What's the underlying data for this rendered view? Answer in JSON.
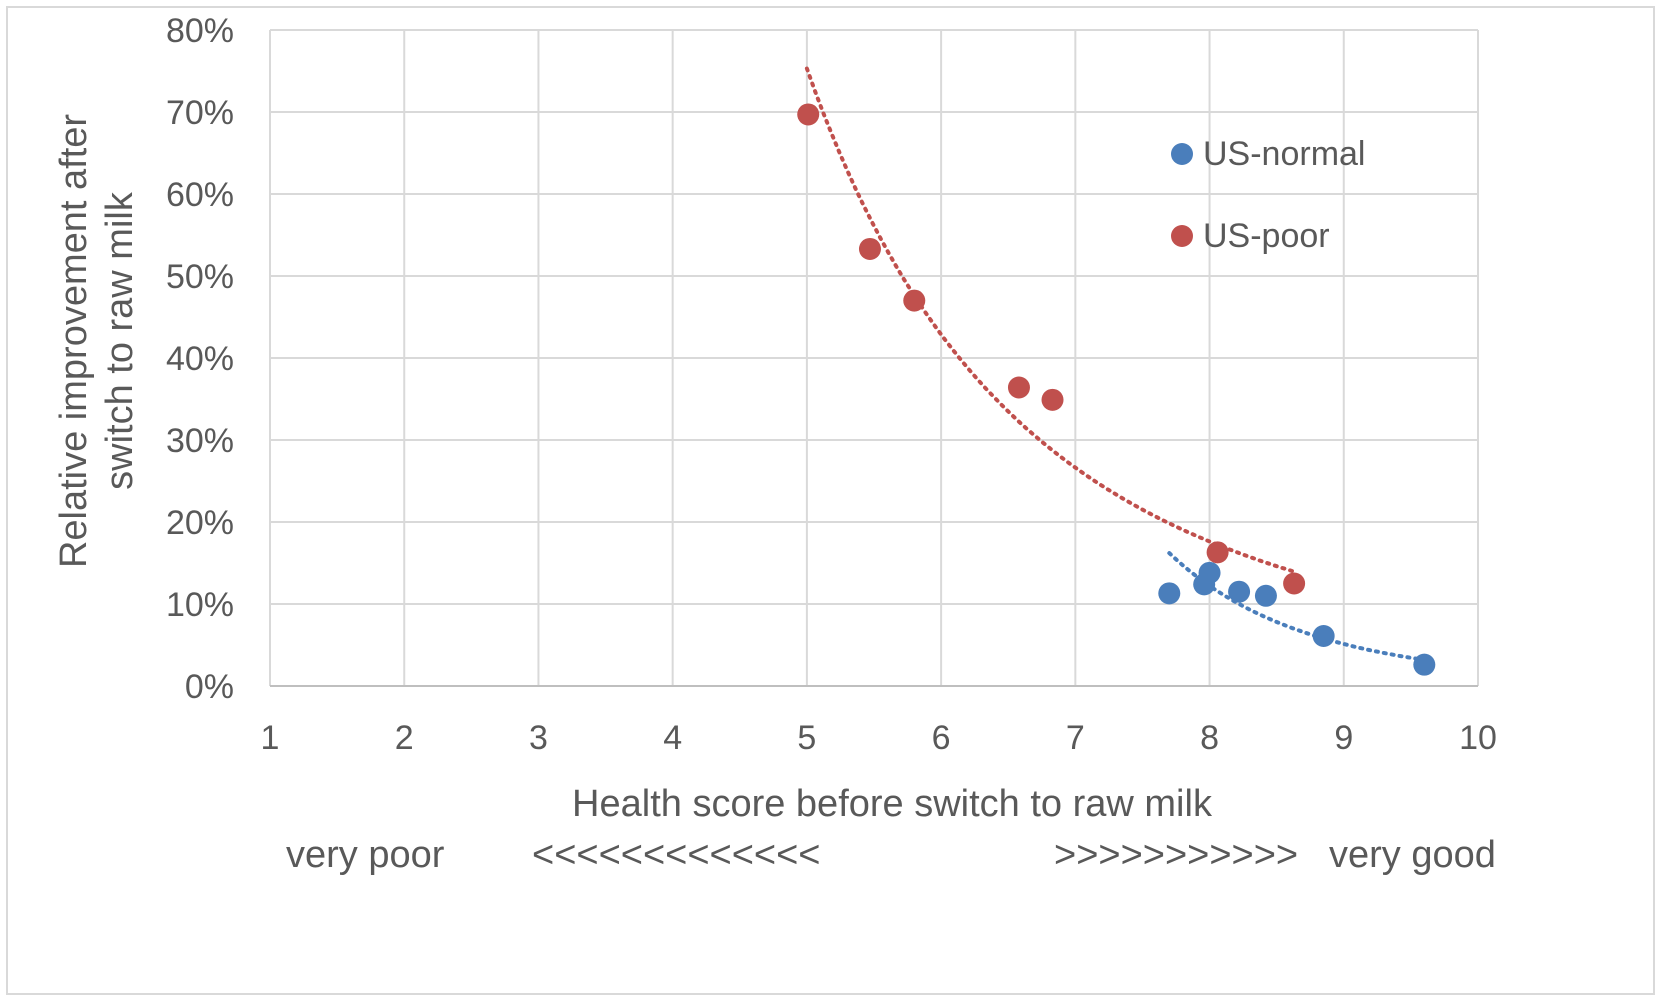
{
  "chart_data": {
    "type": "scatter",
    "title": "",
    "xlabel": "Health score before switch to raw milk",
    "ylabel_lines": [
      "Relative improvement after",
      "switch to raw milk"
    ],
    "xlim": [
      1,
      10
    ],
    "ylim": [
      0,
      0.8
    ],
    "x_ticks": [
      "1",
      "2",
      "3",
      "4",
      "5",
      "6",
      "7",
      "8",
      "9",
      "10"
    ],
    "y_ticks": [
      "0%",
      "10%",
      "20%",
      "30%",
      "40%",
      "50%",
      "60%",
      "70%",
      "80%"
    ],
    "grid": true,
    "legend_position": "top-right",
    "scale_notes": {
      "left": "very poor",
      "left_arrows": "<<<<<<<<<<<<<",
      "right_arrows": ">>>>>>>>>>>",
      "right": "very good"
    },
    "series": [
      {
        "name": "US-normal",
        "color": "#4a7ebb",
        "points": [
          {
            "x": 7.7,
            "y": 0.113
          },
          {
            "x": 7.96,
            "y": 0.124
          },
          {
            "x": 8.0,
            "y": 0.138
          },
          {
            "x": 8.22,
            "y": 0.115
          },
          {
            "x": 8.42,
            "y": 0.11
          },
          {
            "x": 8.85,
            "y": 0.061
          },
          {
            "x": 9.6,
            "y": 0.026
          }
        ],
        "trendline": {
          "style": "dotted",
          "x_range": [
            7.7,
            9.6
          ]
        }
      },
      {
        "name": "US-poor",
        "color": "#c0504d",
        "points": [
          {
            "x": 5.01,
            "y": 0.697
          },
          {
            "x": 5.47,
            "y": 0.533
          },
          {
            "x": 5.8,
            "y": 0.47
          },
          {
            "x": 6.58,
            "y": 0.364
          },
          {
            "x": 6.83,
            "y": 0.349
          },
          {
            "x": 8.06,
            "y": 0.163
          },
          {
            "x": 8.63,
            "y": 0.125
          }
        ],
        "trendline": {
          "style": "dotted",
          "x_range": [
            5.0,
            8.63
          ]
        }
      }
    ]
  }
}
